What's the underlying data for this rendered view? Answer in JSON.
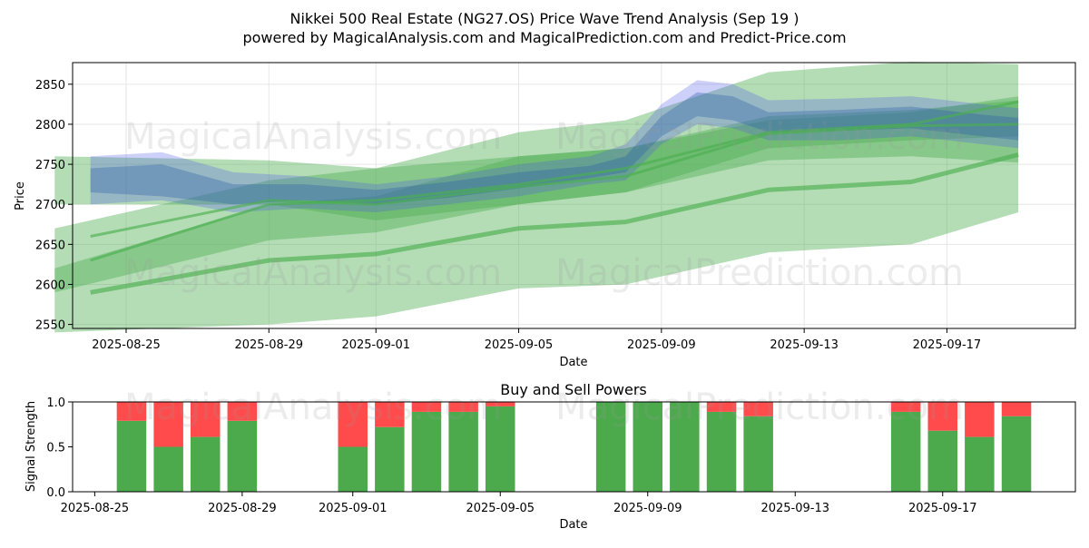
{
  "title_line1": "Nikkei 500 Real Estate (NG27.OS) Price Wave Trend Analysis (Sep 19 )",
  "title_line2": "powered by MagicalAnalysis.com and MagicalPrediction.com and Predict-Price.com",
  "watermarks": [
    "MagicalAnalysis.com",
    "MagicalPrediction.com"
  ],
  "colors": {
    "green_band": "#4caf50",
    "blue_band": "#4a56e8",
    "buy": "#4caa4c",
    "sell": "#ff4b4b"
  },
  "chart_data": [
    {
      "type": "area",
      "name": "price-wave-trend",
      "xlabel": "Date",
      "ylabel": "Price",
      "x_ticks": [
        "2025-08-25",
        "2025-08-29",
        "2025-09-01",
        "2025-09-05",
        "2025-09-09",
        "2025-09-13",
        "2025-09-17"
      ],
      "y_ticks": [
        2550,
        2600,
        2650,
        2700,
        2750,
        2800,
        2850
      ],
      "xlim": [
        "2025-08-23",
        "2025-09-20"
      ],
      "ylim": [
        2545,
        2877
      ],
      "grid": true,
      "green_lines": [
        {
          "x": [
            "2025-08-24",
            "2025-08-29",
            "2025-09-01",
            "2025-09-05",
            "2025-09-08",
            "2025-09-12",
            "2025-09-16",
            "2025-09-19"
          ],
          "y": [
            2590,
            2630,
            2638,
            2670,
            2678,
            2718,
            2728,
            2762
          ]
        },
        {
          "x": [
            "2025-08-24",
            "2025-08-29",
            "2025-09-01",
            "2025-09-05",
            "2025-09-08",
            "2025-09-12",
            "2025-09-16",
            "2025-09-19"
          ],
          "y": [
            2630,
            2700,
            2705,
            2725,
            2745,
            2790,
            2800,
            2828
          ]
        },
        {
          "x": [
            "2025-08-24",
            "2025-08-29",
            "2025-09-01",
            "2025-09-05",
            "2025-09-08",
            "2025-09-12",
            "2025-09-16",
            "2025-09-19"
          ],
          "y": [
            2660,
            2705,
            2700,
            2722,
            2735,
            2788,
            2798,
            2800
          ]
        }
      ],
      "green_bands": [
        {
          "x": [
            "2025-08-23",
            "2025-08-29",
            "2025-09-01",
            "2025-09-05",
            "2025-09-08",
            "2025-09-12",
            "2025-09-16",
            "2025-09-19"
          ],
          "upper": [
            2620,
            2700,
            2710,
            2760,
            2770,
            2805,
            2815,
            2835
          ],
          "lower": [
            2540,
            2550,
            2560,
            2595,
            2600,
            2640,
            2650,
            2690
          ]
        },
        {
          "x": [
            "2025-08-23",
            "2025-08-29",
            "2025-09-01",
            "2025-09-05",
            "2025-09-08",
            "2025-09-12",
            "2025-09-16",
            "2025-09-19"
          ],
          "upper": [
            2670,
            2730,
            2745,
            2790,
            2805,
            2865,
            2878,
            2875
          ],
          "lower": [
            2590,
            2655,
            2665,
            2700,
            2715,
            2755,
            2760,
            2752
          ]
        },
        {
          "x": [
            "2025-08-23",
            "2025-08-29",
            "2025-09-01",
            "2025-09-05",
            "2025-09-08",
            "2025-09-12",
            "2025-09-16",
            "2025-09-19"
          ],
          "upper": [
            2760,
            2755,
            2745,
            2760,
            2770,
            2810,
            2818,
            2830
          ],
          "lower": [
            2700,
            2700,
            2680,
            2700,
            2715,
            2770,
            2780,
            2785
          ]
        }
      ],
      "blue_series": [
        {
          "x": [
            "2025-08-24",
            "2025-08-26",
            "2025-08-28",
            "2025-08-30",
            "2025-09-01",
            "2025-09-03",
            "2025-09-05",
            "2025-09-07",
            "2025-09-08",
            "2025-09-09",
            "2025-09-10",
            "2025-09-11",
            "2025-09-12",
            "2025-09-14",
            "2025-09-16",
            "2025-09-18",
            "2025-09-19"
          ],
          "upper": [
            2760,
            2765,
            2740,
            2735,
            2725,
            2735,
            2750,
            2760,
            2775,
            2825,
            2855,
            2850,
            2830,
            2832,
            2835,
            2825,
            2820
          ],
          "lower": [
            2700,
            2705,
            2690,
            2695,
            2690,
            2700,
            2710,
            2725,
            2730,
            2775,
            2800,
            2795,
            2780,
            2780,
            2785,
            2775,
            2770
          ]
        },
        {
          "x": [
            "2025-08-24",
            "2025-08-26",
            "2025-08-28",
            "2025-08-30",
            "2025-09-01",
            "2025-09-03",
            "2025-09-05",
            "2025-09-07",
            "2025-09-08",
            "2025-09-09",
            "2025-09-10",
            "2025-09-11",
            "2025-09-12",
            "2025-09-14",
            "2025-09-16",
            "2025-09-18",
            "2025-09-19"
          ],
          "upper": [
            2745,
            2750,
            2725,
            2725,
            2718,
            2728,
            2740,
            2748,
            2760,
            2810,
            2840,
            2835,
            2815,
            2818,
            2822,
            2812,
            2808
          ],
          "lower": [
            2715,
            2710,
            2700,
            2705,
            2700,
            2708,
            2720,
            2733,
            2740,
            2785,
            2810,
            2805,
            2790,
            2792,
            2795,
            2785,
            2780
          ]
        }
      ]
    },
    {
      "type": "bar",
      "name": "buy-sell-powers",
      "title": "Buy and Sell Powers",
      "xlabel": "Date",
      "ylabel": "Signal Strength",
      "x_ticks": [
        "2025-08-25",
        "2025-08-29",
        "2025-09-01",
        "2025-09-05",
        "2025-09-09",
        "2025-09-13",
        "2025-09-17"
      ],
      "y_ticks": [
        "0.0",
        "0.5",
        "1.0"
      ],
      "ylim": [
        0,
        1
      ],
      "categories": [
        "2025-08-26",
        "2025-08-27",
        "2025-08-28",
        "2025-08-29",
        "2025-09-01",
        "2025-09-02",
        "2025-09-03",
        "2025-09-04",
        "2025-09-05",
        "2025-09-08",
        "2025-09-09",
        "2025-09-10",
        "2025-09-11",
        "2025-09-12",
        "2025-09-16",
        "2025-09-17",
        "2025-09-18",
        "2025-09-19"
      ],
      "series": [
        {
          "values": [
            0.79,
            0.5,
            0.61,
            0.79,
            0.5,
            0.72,
            0.89,
            0.89,
            0.95,
            1.0,
            1.0,
            1.0,
            0.89,
            0.84,
            0.89,
            0.68,
            0.61,
            0.84
          ]
        },
        {
          "values": [
            0.21,
            0.5,
            0.39,
            0.21,
            0.5,
            0.28,
            0.11,
            0.11,
            0.05,
            0.0,
            0.0,
            0.0,
            0.11,
            0.16,
            0.11,
            0.32,
            0.39,
            0.16
          ]
        }
      ]
    }
  ]
}
